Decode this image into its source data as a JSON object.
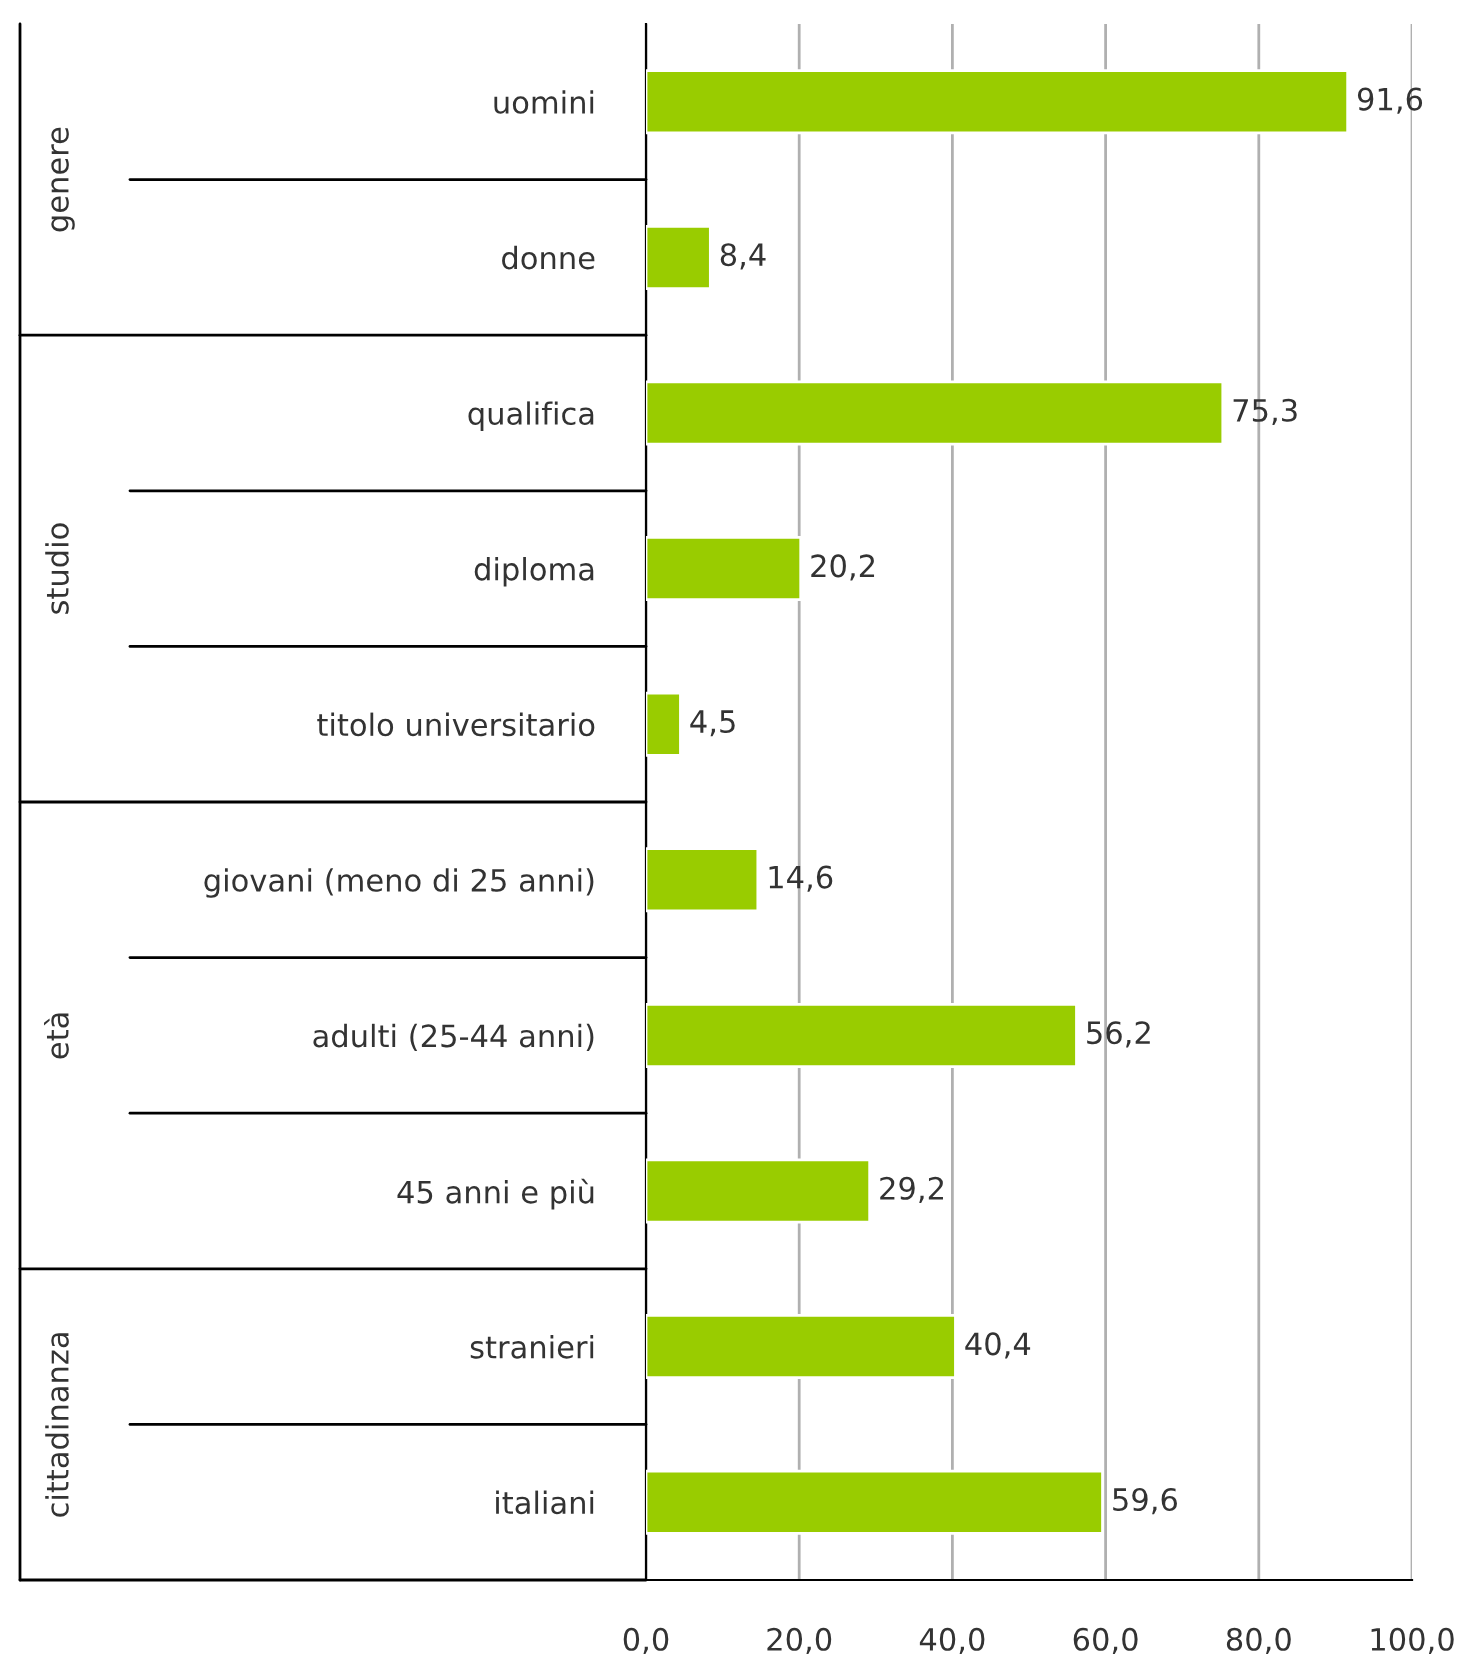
{
  "chart_data": {
    "type": "bar",
    "orientation": "horizontal",
    "categories": [
      "uomini",
      "donne",
      "qualifica",
      "diploma",
      "titolo universitario",
      "giovani (meno di 25 anni)",
      "adulti (25-44 anni)",
      "45 anni e più",
      "stranieri",
      "italiani"
    ],
    "values": [
      91.6,
      8.4,
      75.3,
      20.2,
      4.5,
      14.6,
      56.2,
      29.2,
      40.4,
      59.6
    ],
    "value_labels": [
      "91,6",
      "8,4",
      "75,3",
      "20,2",
      "4,5",
      "14,6",
      "56,2",
      "29,2",
      "40,4",
      "59,6"
    ],
    "color": "#99cc00",
    "xlim": [
      0,
      100
    ],
    "xticks": [
      {
        "value": 0,
        "label": "0,0"
      },
      {
        "value": 20,
        "label": "20,0"
      },
      {
        "value": 40,
        "label": "40,0"
      },
      {
        "value": 60,
        "label": "60,0"
      },
      {
        "value": 80,
        "label": "80,0"
      },
      {
        "value": 100,
        "label": "100,0"
      }
    ],
    "grid": "x",
    "annotations": [
      "genere",
      "studio",
      "età",
      "cittadinanza"
    ]
  }
}
